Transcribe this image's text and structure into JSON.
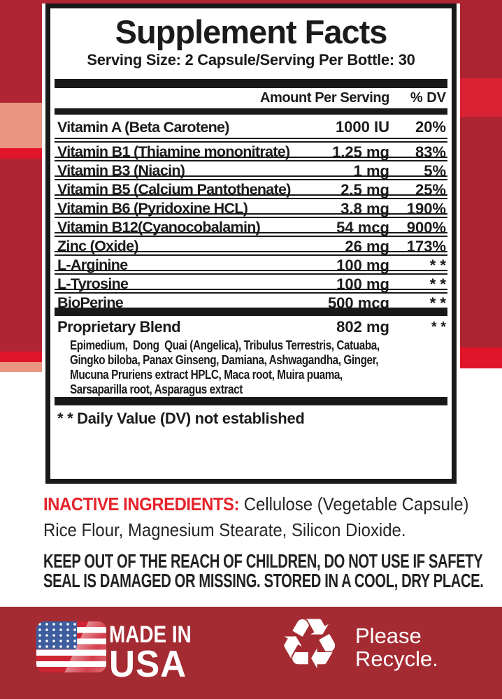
{
  "colors": {
    "backdrop_dark_red": "#b02533",
    "backdrop_bright_red": "#e0152b",
    "backdrop_salmon": "#e9957f",
    "footer_band_red": "#a52b33",
    "accent_red": "#e5232b",
    "ink_black": "#1b1b1b"
  },
  "label": {
    "title": "Supplement Facts",
    "serving_line": "Serving Size: 2 Capsule/Serving Per Bottle: 30",
    "columns": {
      "amount": "Amount Per Serving",
      "dv": "% DV"
    },
    "rows": [
      {
        "name": "Vitamin A (Beta Carotene)",
        "amount": "1000 IU",
        "dv": "20%"
      },
      {
        "name": "Vitamin B1 (Thiamine mononitrate)",
        "amount": "1.25 mg",
        "dv": "83%"
      },
      {
        "name": "Vitamin B3 (Niacin)",
        "amount": "1 mg",
        "dv": "5%"
      },
      {
        "name": "Vitamin B5 (Calcium Pantothenate)",
        "amount": "2.5 mg",
        "dv": "25%"
      },
      {
        "name": "Vitamin B6 (Pyridoxine HCL)",
        "amount": "3.8 mg",
        "dv": "190%"
      },
      {
        "name": "Vitamin B12(Cyanocobalamin)",
        "amount": "54 mcg",
        "dv": "900%"
      },
      {
        "name": "Zinc (Oxide)",
        "amount": "26 mg",
        "dv": "173%"
      },
      {
        "name": "L-Arginine",
        "amount": "100 mg",
        "dv": "* *"
      },
      {
        "name": "L-Tyrosine",
        "amount": "100 mg",
        "dv": "* *"
      },
      {
        "name": "BioPerine",
        "amount": "500 mcg",
        "dv": "* *"
      }
    ],
    "blend": {
      "name": "Proprietary Blend",
      "amount": "802 mg",
      "dv": "* *",
      "lines": [
        "Epimedium,  Dong  Quai (Angelica), Tribulus Terrestris, Catuaba,",
        "Gingko biloba, Panax Ginseng, Damiana, Ashwagandha, Ginger,",
        "Mucuna Pruriens extract HPLC, Maca root, Muira puama,",
        "Sarsaparilla root, Asparagus extract"
      ]
    },
    "footnote": "* * Daily Value (DV) not established"
  },
  "inactive": {
    "label": "INACTIVE INGREDIENTS:",
    "line1_rest": " Cellulose (Vegetable Capsule)",
    "line2": "Rice Flour, Magnesium Stearate, Silicon Dioxide."
  },
  "warning": {
    "line1": "KEEP OUT OF THE REACH OF CHILDREN, DO NOT USE IF SAFETY",
    "line2": "SEAL IS DAMAGED OR MISSING. STORED IN A COOL, DRY PLACE."
  },
  "footer": {
    "made_in": "MADE IN",
    "usa": "USA",
    "recycle_glyph": "♻",
    "recycle_line1": "Please",
    "recycle_line2": "Recycle."
  }
}
